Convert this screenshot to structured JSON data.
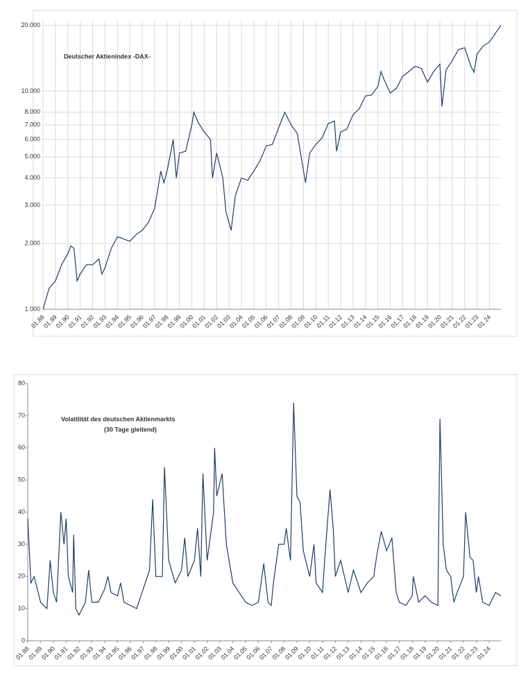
{
  "chart_data": [
    {
      "type": "line",
      "title": "Deutscher Aktienindex -DAX-",
      "log_scale": true,
      "grid": true,
      "xgrid": true,
      "xlim": [
        "01.88",
        "12.24"
      ],
      "xticks": [
        "01.88",
        "01.89",
        "01.90",
        "01.91",
        "01.92",
        "01.93",
        "01.94",
        "01.95",
        "01.96",
        "01.97",
        "01.98",
        "01.99",
        "01.00",
        "01.01",
        "01.02",
        "01.03",
        "01.04",
        "01.05",
        "01.06",
        "01.07",
        "01.08",
        "01.09",
        "01.10",
        "01.11",
        "01.12",
        "01.13",
        "01.14",
        "01.15",
        "01.16",
        "01.17",
        "01.18",
        "01.19",
        "01.20",
        "01.21",
        "01.22",
        "01.23",
        "01.24"
      ],
      "ylim": [
        1000,
        21000
      ],
      "yticks": [
        {
          "value": 1000,
          "label": "1.000"
        },
        {
          "value": 2000,
          "label": "2.000"
        },
        {
          "value": 3000,
          "label": "3.000"
        },
        {
          "value": 4000,
          "label": "4.000"
        },
        {
          "value": 5000,
          "label": "5.000"
        },
        {
          "value": 6000,
          "label": "6.000"
        },
        {
          "value": 7000,
          "label": "7.000"
        },
        {
          "value": 8000,
          "label": "8.000"
        },
        {
          "value": 10000,
          "label": "10.000"
        },
        {
          "value": 20000,
          "label": "20.000"
        }
      ],
      "x": [
        "01.88",
        "07.88",
        "01.89",
        "07.89",
        "01.90",
        "04.90",
        "07.90",
        "10.90",
        "01.91",
        "07.91",
        "01.92",
        "07.92",
        "10.92",
        "01.93",
        "07.93",
        "01.94",
        "07.94",
        "01.95",
        "07.95",
        "01.96",
        "07.96",
        "01.97",
        "07.97",
        "10.97",
        "01.98",
        "07.98",
        "10.98",
        "01.99",
        "07.99",
        "01.00",
        "03.00",
        "07.00",
        "01.01",
        "07.01",
        "09.01",
        "01.02",
        "07.02",
        "10.02",
        "03.03",
        "07.03",
        "01.04",
        "07.04",
        "01.05",
        "07.05",
        "01.06",
        "07.06",
        "01.07",
        "07.07",
        "01.08",
        "07.08",
        "03.09",
        "07.09",
        "01.10",
        "07.10",
        "01.11",
        "07.11",
        "09.11",
        "01.12",
        "07.12",
        "01.13",
        "07.13",
        "01.14",
        "07.14",
        "01.15",
        "04.15",
        "07.15",
        "01.16",
        "07.16",
        "01.17",
        "07.17",
        "01.18",
        "07.18",
        "01.19",
        "07.19",
        "01.20",
        "03.20",
        "07.20",
        "01.21",
        "07.21",
        "01.22",
        "07.22",
        "10.22",
        "01.23",
        "07.23",
        "01.24",
        "07.24",
        "12.24"
      ],
      "series": [
        {
          "color": "#1f3a64",
          "values": [
            1000,
            1250,
            1350,
            1600,
            1800,
            1950,
            1900,
            1350,
            1450,
            1600,
            1600,
            1700,
            1450,
            1550,
            1900,
            2150,
            2100,
            2050,
            2200,
            2300,
            2500,
            2900,
            4300,
            3800,
            4300,
            6000,
            4000,
            5200,
            5300,
            7000,
            8000,
            7200,
            6500,
            6000,
            4000,
            5200,
            4000,
            2800,
            2300,
            3300,
            4000,
            3900,
            4300,
            4800,
            5600,
            5700,
            6800,
            8000,
            7000,
            6400,
            3800,
            5200,
            5700,
            6100,
            7100,
            7300,
            5300,
            6500,
            6700,
            7800,
            8300,
            9500,
            9600,
            10500,
            12300,
            11300,
            9800,
            10300,
            11700,
            12300,
            13000,
            12700,
            11000,
            12300,
            13300,
            8500,
            12500,
            13800,
            15500,
            15800,
            13000,
            12200,
            14800,
            16100,
            16800,
            18500,
            20000
          ]
        }
      ]
    },
    {
      "type": "line",
      "title": "Volatilität des deutschen Aktienmarkts",
      "subtitle": "(30 Tage gleitend)",
      "log_scale": false,
      "grid": false,
      "xgrid": false,
      "xlim": [
        "01.88",
        "12.24"
      ],
      "xticks": [
        "01.88",
        "01.89",
        "01.90",
        "01.91",
        "01.92",
        "01.93",
        "01.94",
        "01.95",
        "01.96",
        "01.97",
        "01.98",
        "01.99",
        "01.00",
        "01.01",
        "01.02",
        "01.03",
        "01.04",
        "01.05",
        "01.06",
        "01.07",
        "01.08",
        "01.09",
        "01.10",
        "01.11",
        "01.12",
        "01.13",
        "01.14",
        "01.15",
        "01.16",
        "01.17",
        "01.18",
        "01.19",
        "01.20",
        "01.21",
        "01.22",
        "01.23",
        "01.24"
      ],
      "ylim": [
        0,
        80
      ],
      "yticks": [
        0,
        10,
        20,
        30,
        40,
        50,
        60,
        70,
        80
      ],
      "x": [
        "01.88",
        "04.88",
        "07.88",
        "01.89",
        "07.89",
        "10.89",
        "01.90",
        "04.90",
        "08.90",
        "11.90",
        "01.91",
        "03.91",
        "07.91",
        "08.91",
        "10.91",
        "01.92",
        "07.92",
        "10.92",
        "01.93",
        "07.93",
        "01.94",
        "04.94",
        "07.94",
        "01.95",
        "04.95",
        "07.95",
        "01.96",
        "07.96",
        "01.97",
        "07.97",
        "10.97",
        "01.98",
        "07.98",
        "09.98",
        "01.99",
        "07.99",
        "01.00",
        "04.00",
        "07.00",
        "01.01",
        "04.01",
        "07.01",
        "09.01",
        "01.02",
        "07.02",
        "08.02",
        "10.02",
        "03.03",
        "07.03",
        "01.04",
        "07.04",
        "01.05",
        "07.05",
        "01.06",
        "06.06",
        "10.06",
        "01.07",
        "03.07",
        "08.07",
        "01.08",
        "03.08",
        "07.08",
        "10.08",
        "01.09",
        "04.09",
        "07.09",
        "01.10",
        "05.10",
        "07.10",
        "01.11",
        "03.11",
        "08.11",
        "11.11",
        "01.12",
        "06.12",
        "01.13",
        "06.13",
        "01.14",
        "07.14",
        "01.15",
        "04.15",
        "08.15",
        "01.16",
        "06.16",
        "10.16",
        "01.17",
        "07.17",
        "01.18",
        "02.18",
        "07.18",
        "01.19",
        "07.19",
        "01.20",
        "03.20",
        "06.20",
        "09.20",
        "01.21",
        "04.21",
        "07.21",
        "01.22",
        "03.22",
        "07.22",
        "10.22",
        "01.23",
        "03.23",
        "07.23",
        "01.24",
        "07.24",
        "12.24"
      ],
      "series": [
        {
          "color": "#1f3a64",
          "values": [
            38,
            18,
            20,
            12,
            10,
            25,
            15,
            12,
            40,
            30,
            38,
            20,
            15,
            33,
            10,
            8,
            12,
            22,
            12,
            12,
            16,
            20,
            15,
            14,
            18,
            12,
            11,
            10,
            16,
            22,
            44,
            20,
            20,
            54,
            25,
            18,
            22,
            32,
            20,
            25,
            35,
            20,
            52,
            25,
            40,
            60,
            45,
            52,
            30,
            18,
            15,
            12,
            11,
            12,
            24,
            12,
            11,
            18,
            30,
            30,
            35,
            25,
            74,
            45,
            43,
            28,
            20,
            30,
            18,
            15,
            25,
            47,
            35,
            20,
            25,
            15,
            22,
            15,
            18,
            20,
            27,
            34,
            28,
            32,
            15,
            12,
            11,
            14,
            20,
            12,
            14,
            12,
            11,
            69,
            30,
            22,
            20,
            12,
            15,
            20,
            40,
            26,
            25,
            15,
            20,
            12,
            11,
            15,
            14
          ]
        }
      ]
    }
  ]
}
